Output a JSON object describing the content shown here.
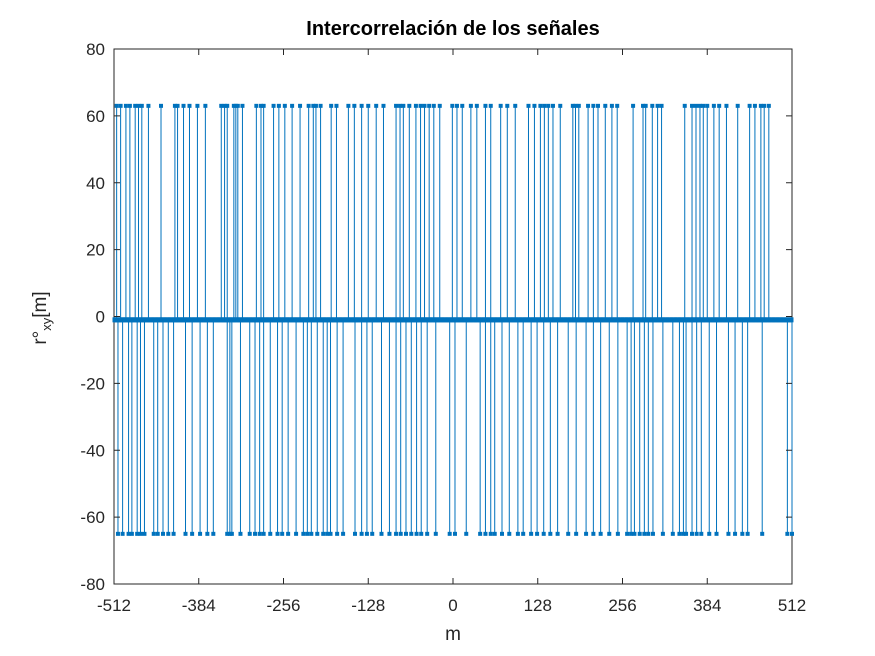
{
  "chart_data": {
    "type": "stem",
    "title": "Intercorrelación de los señales",
    "xlabel": "m",
    "ylabel_main": "r°",
    "ylabel_sub": "xy",
    "ylabel_suffix": "[m]",
    "xlim": [
      -512,
      512
    ],
    "ylim": [
      -80,
      80
    ],
    "xticks": [
      -512,
      -384,
      -256,
      -128,
      0,
      128,
      256,
      384,
      512
    ],
    "yticks": [
      -80,
      -60,
      -40,
      -20,
      0,
      20,
      40,
      60,
      80
    ],
    "xtick_labels": [
      "-512",
      "-384",
      "-256",
      "-128",
      "0",
      "128",
      "256",
      "384",
      "512"
    ],
    "ytick_labels": [
      "-80",
      "-60",
      "-40",
      "-20",
      "0",
      "20",
      "40",
      "60",
      "80"
    ],
    "grid": false,
    "color": "#0072BD",
    "baseline": -1,
    "series": [
      {
        "y": 63,
        "x": [
          -508,
          -502,
          -494,
          -488,
          -480,
          -475,
          -470,
          -460,
          -441,
          -420,
          -416,
          -407,
          -398,
          -386,
          -374,
          -350,
          -345,
          -341,
          -331,
          -328,
          -325,
          -318,
          -297,
          -290,
          -286,
          -271,
          -263,
          -254,
          -243,
          -231,
          -218,
          -211,
          -207,
          -200,
          -184,
          -176,
          -158,
          -149,
          -138,
          -128,
          -116,
          -105,
          -86,
          -80,
          -75,
          -66,
          -56,
          -49,
          -43,
          -36,
          -29,
          -20,
          -1,
          6,
          14,
          27,
          36,
          49,
          57,
          72,
          82,
          94,
          114,
          123,
          132,
          138,
          144,
          151,
          162,
          181,
          185,
          190,
          204,
          212,
          219,
          230,
          240,
          248,
          272,
          287,
          291,
          301,
          309,
          315,
          350,
          361,
          367,
          373,
          378,
          384,
          394,
          402,
          413,
          430,
          448,
          456,
          465,
          470,
          477
        ]
      },
      {
        "y": -65,
        "x": [
          -506,
          -499,
          -490,
          -485,
          -477,
          -472,
          -466,
          -452,
          -446,
          -438,
          -430,
          -422,
          -404,
          -394,
          -382,
          -371,
          -362,
          -341,
          -337,
          -334,
          -321,
          -307,
          -299,
          -292,
          -286,
          -276,
          -265,
          -258,
          -249,
          -237,
          -226,
          -220,
          -214,
          -205,
          -196,
          -190,
          -185,
          -175,
          -166,
          -148,
          -138,
          -130,
          -122,
          -108,
          -96,
          -86,
          -79,
          -71,
          -63,
          -55,
          -48,
          -39,
          -26,
          -5,
          3,
          20,
          41,
          49,
          57,
          63,
          74,
          85,
          98,
          106,
          118,
          127,
          137,
          147,
          158,
          174,
          186,
          201,
          212,
          223,
          236,
          249,
          263,
          269,
          274,
          282,
          289,
          295,
          302,
          317,
          332,
          342,
          348,
          352,
          361,
          368,
          375,
          387,
          398,
          416,
          426,
          437,
          445,
          467,
          505,
          512
        ]
      }
    ]
  }
}
